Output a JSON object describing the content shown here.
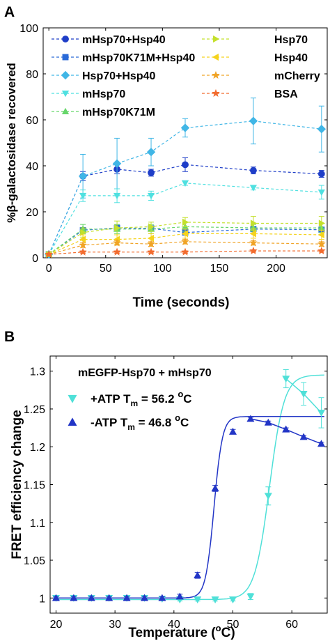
{
  "panels": {
    "a": {
      "letter": "A"
    },
    "b": {
      "letter": "B"
    }
  },
  "chart_data": [
    {
      "type": "line",
      "panel": "A",
      "xlabel": "Time (seconds)",
      "ylabel": "%β-galactosidase recovered",
      "xlim": [
        -5,
        245
      ],
      "ylim": [
        0,
        100
      ],
      "xticks": [
        0,
        50,
        100,
        150,
        200
      ],
      "yticks": [
        0,
        20,
        40,
        60,
        80,
        100
      ],
      "grid": false,
      "legend": "top, two columns",
      "x": [
        0,
        30,
        60,
        90,
        120,
        180,
        240
      ],
      "series": [
        {
          "name": "mHsp70+Hsp40",
          "color": "#1f3ec8",
          "marker": "circle",
          "values": [
            1.5,
            35.5,
            38.5,
            37,
            40.5,
            38,
            36.5
          ],
          "errors": [
            0.5,
            2,
            2,
            1.5,
            3,
            1.5,
            1.5
          ]
        },
        {
          "name": "mHsp70K71M+Hsp40",
          "color": "#2a6ad8",
          "marker": "square",
          "values": [
            1.5,
            12,
            13,
            12.8,
            11,
            12.5,
            12.2
          ],
          "errors": [
            0.5,
            1,
            1,
            1,
            1,
            1,
            1
          ]
        },
        {
          "name": "Hsp70+Hsp40",
          "color": "#40b6e6",
          "marker": "diamond",
          "values": [
            1.5,
            35.5,
            41,
            46,
            56.5,
            59.5,
            56
          ],
          "errors": [
            0.5,
            9.5,
            11,
            6,
            4,
            10,
            10
          ]
        },
        {
          "name": "mHsp70",
          "color": "#4fe0e0",
          "marker": "triangle-down",
          "values": [
            1.5,
            27,
            27,
            27,
            32.5,
            30.5,
            28.5
          ],
          "errors": [
            0.5,
            2.5,
            3,
            2,
            1,
            1,
            3
          ]
        },
        {
          "name": "mHsp70K71M",
          "color": "#66d66a",
          "marker": "triangle-up",
          "values": [
            1.5,
            12.5,
            12.5,
            12.5,
            13.5,
            13,
            13
          ],
          "errors": [
            0.5,
            2,
            2,
            2,
            2,
            1.5,
            2
          ]
        },
        {
          "name": "Hsp70",
          "color": "#c4e02c",
          "marker": "triangle-right",
          "values": [
            1.5,
            11,
            13,
            13.5,
            15.5,
            15,
            15
          ],
          "errors": [
            0.5,
            2,
            3,
            2,
            2,
            3,
            3
          ]
        },
        {
          "name": "Hsp40",
          "color": "#f5d31c",
          "marker": "triangle-left",
          "values": [
            1.5,
            8,
            8,
            8.5,
            10.5,
            10.5,
            10
          ],
          "errors": [
            0.5,
            2,
            2,
            2,
            2,
            2,
            2
          ]
        },
        {
          "name": "mCherry",
          "color": "#f0a326",
          "marker": "star",
          "values": [
            1.5,
            5.5,
            6.5,
            6,
            7,
            6.5,
            6
          ],
          "errors": [
            0.5,
            1,
            1,
            1,
            1,
            1,
            1
          ]
        },
        {
          "name": "BSA",
          "color": "#f26b2e",
          "marker": "star",
          "values": [
            1.5,
            2.5,
            2.5,
            2.5,
            2.5,
            3,
            3
          ],
          "errors": [
            0.3,
            0.5,
            0.5,
            0.5,
            0.5,
            0.5,
            0.5
          ]
        }
      ]
    },
    {
      "type": "line",
      "panel": "B",
      "xlabel": "Temperature (°C)",
      "ylabel": "FRET efficiency change",
      "xlim": [
        19,
        66
      ],
      "ylim": [
        0.98,
        1.32
      ],
      "xticks": [
        20,
        30,
        40,
        50,
        60
      ],
      "yticks": [
        1,
        1.05,
        1.1,
        1.15,
        1.2,
        1.25,
        1.3
      ],
      "ytick_labels": [
        "1",
        "1.05",
        "1.1",
        "1.15",
        "1.2",
        "1.25",
        "1.3"
      ],
      "grid": false,
      "legend_title": "mEGFP-Hsp70 + mHsp70",
      "series": [
        {
          "name": "+ATP Tₘ = 56.2 °C",
          "legend_main": "+ATP T",
          "legend_sub": "m",
          "legend_rest": " = 56.2 ",
          "legend_sup": "o",
          "legend_unit": "C",
          "color": "#4fe0d8",
          "marker": "triangle-down",
          "x": [
            20,
            23,
            26,
            29,
            32,
            35,
            38,
            41,
            44,
            47,
            50,
            53,
            56,
            59,
            62,
            65
          ],
          "values": [
            1.0,
            1.0,
            1.0,
            1.0,
            1.0,
            1.0,
            0.999,
            0.998,
            0.998,
            0.998,
            0.998,
            1.002,
            1.135,
            1.29,
            1.27,
            1.245
          ],
          "errors": [
            0.002,
            0.002,
            0.002,
            0.002,
            0.002,
            0.002,
            0.002,
            0.002,
            0.002,
            0.002,
            0.002,
            0.004,
            0.012,
            0.012,
            0.015,
            0.02
          ],
          "fit_tm": 56.2,
          "fit_low": 0.998,
          "fit_high": 1.295,
          "fit_slope": 0.8
        },
        {
          "name": "-ATP Tₘ = 46.8 °C",
          "legend_main": "-ATP T",
          "legend_sub": "m",
          "legend_rest": " = 46.8 ",
          "legend_sup": "o",
          "legend_unit": "C",
          "color": "#2235c6",
          "marker": "triangle-up",
          "x": [
            20,
            23,
            26,
            29,
            32,
            35,
            38,
            41,
            44,
            47,
            50,
            53,
            56,
            59,
            62,
            65
          ],
          "values": [
            1.0,
            1.0,
            1.0,
            1.0,
            1.0,
            1.0,
            1.0,
            1.002,
            1.03,
            1.145,
            1.22,
            1.237,
            1.232,
            1.223,
            1.213,
            1.204
          ],
          "errors": [
            0.002,
            0.002,
            0.002,
            0.002,
            0.002,
            0.002,
            0.002,
            0.003,
            0.004,
            0.004,
            0.003,
            0.002,
            0.002,
            0.002,
            0.002,
            0.002
          ],
          "fit_tm": 46.8,
          "fit_low": 1.0,
          "fit_high": 1.24,
          "fit_slope": 1.4
        }
      ]
    }
  ]
}
